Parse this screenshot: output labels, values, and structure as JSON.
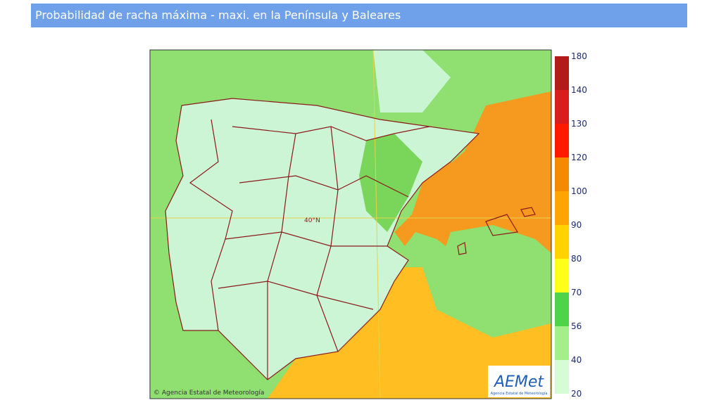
{
  "header": {
    "title": "Probabilidad de racha máxima - maxi. en la Península y Baleares"
  },
  "map": {
    "latitude_label": "40°N",
    "copyright": "© Agencia Estatal de Meteorología",
    "logo": {
      "name": "AEMet",
      "subtitle": "Agencia Estatal de Meteorología"
    }
  },
  "legend": {
    "ticks": [
      180,
      140,
      130,
      120,
      100,
      90,
      80,
      70,
      56,
      40,
      20
    ],
    "colors": [
      "#b31b1b",
      "#d91c1c",
      "#ff1a00",
      "#f58a00",
      "#ffa400",
      "#ffd200",
      "#ffff1a",
      "#4fd34a",
      "#a5ef8a",
      "#d6fcd6"
    ]
  }
}
